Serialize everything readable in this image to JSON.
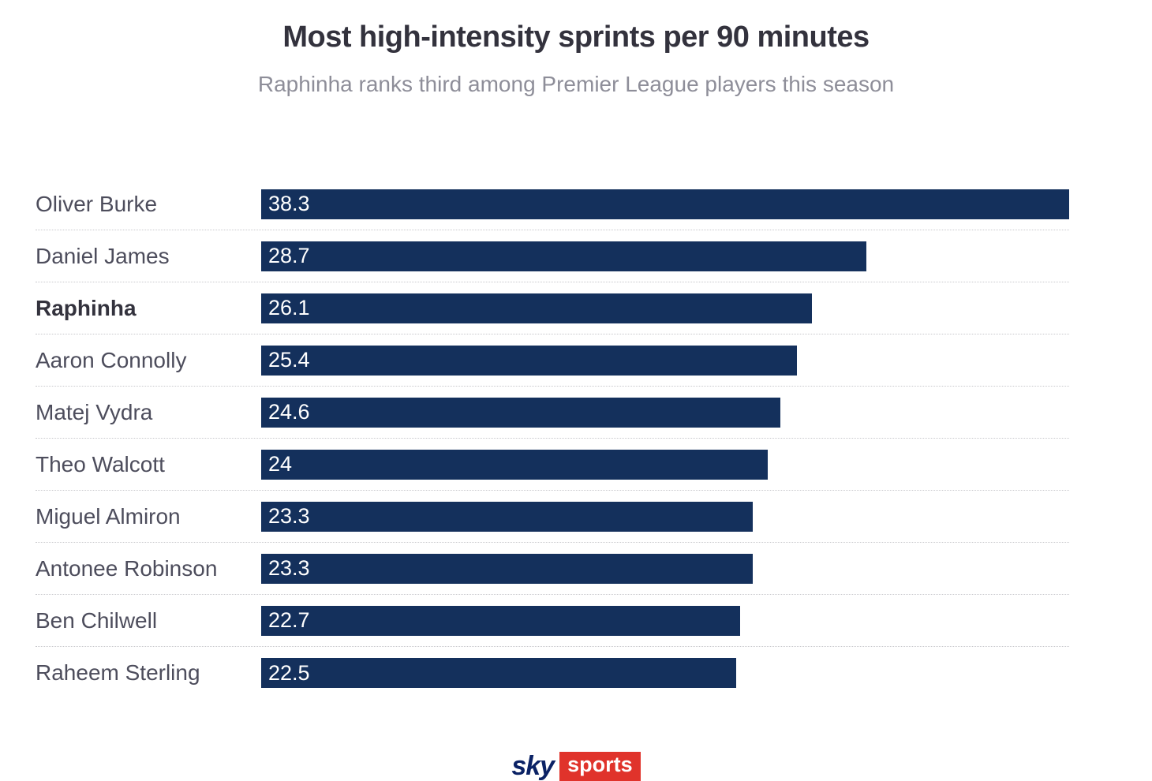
{
  "header": {
    "title": "Most high-intensity sprints per 90 minutes",
    "subtitle": "Raphinha ranks third among Premier League players this season"
  },
  "chart_data": {
    "type": "bar",
    "orientation": "horizontal",
    "title": "Most high-intensity sprints per 90 minutes",
    "subtitle": "Raphinha ranks third among Premier League players this season",
    "categories": [
      "Oliver Burke",
      "Daniel James",
      "Raphinha",
      "Aaron Connolly",
      "Matej Vydra",
      "Theo Walcott",
      "Miguel Almiron",
      "Antonee Robinson",
      "Ben Chilwell",
      "Raheem Sterling"
    ],
    "values": [
      38.3,
      28.7,
      26.1,
      25.4,
      24.6,
      24,
      23.3,
      23.3,
      22.7,
      22.5
    ],
    "value_labels": [
      "38.3",
      "28.7",
      "26.1",
      "25.4",
      "24.6",
      "24",
      "23.3",
      "23.3",
      "22.7",
      "22.5"
    ],
    "highlighted_category": "Raphinha",
    "xlim": [
      0,
      38.3
    ],
    "bar_color": "#14305c",
    "grid": "dotted-row-separators",
    "legend": "none"
  },
  "footer": {
    "logo_sky": "sky",
    "logo_sports": "sports",
    "logo_navy": "#0b2265",
    "logo_red": "#e0332b"
  }
}
